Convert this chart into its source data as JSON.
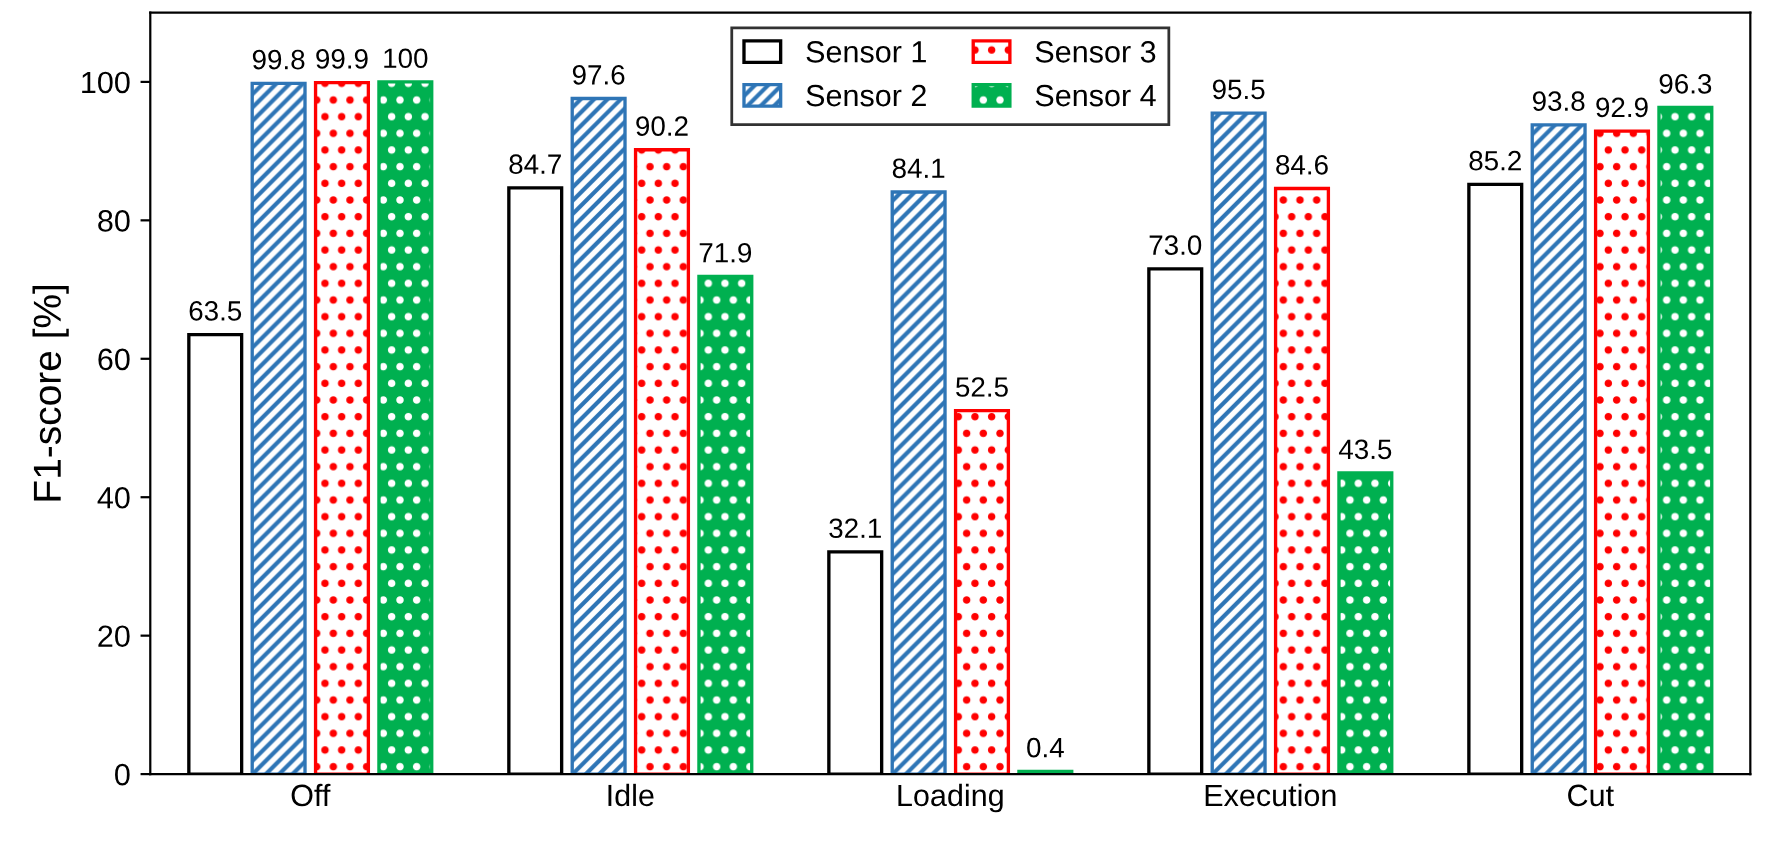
{
  "chart_data": {
    "type": "bar",
    "ylabel": "F1-score [%]",
    "categories": [
      "Off",
      "Idle",
      "Loading",
      "Execution",
      "Cut"
    ],
    "series": [
      {
        "name": "Sensor 1",
        "color": "#000000",
        "values": [
          63.5,
          84.7,
          32.1,
          73.0,
          85.2
        ],
        "value_labels": [
          "63.5",
          "84.7",
          "32.1",
          "73.0",
          "85.2"
        ]
      },
      {
        "name": "Sensor 2",
        "color": "#2e75b6",
        "values": [
          99.8,
          97.6,
          84.1,
          95.5,
          93.8
        ],
        "value_labels": [
          "99.8",
          "97.6",
          "84.1",
          "95.5",
          "93.8"
        ]
      },
      {
        "name": "Sensor 3",
        "color": "#ff0000",
        "values": [
          99.9,
          90.2,
          52.5,
          84.6,
          92.9
        ],
        "value_labels": [
          "99.9",
          "90.2",
          "52.5",
          "84.6",
          "92.9"
        ]
      },
      {
        "name": "Sensor 4",
        "color": "#00b050",
        "values": [
          100,
          71.9,
          0.4,
          43.5,
          96.3
        ],
        "value_labels": [
          "100",
          "71.9",
          "0.4",
          "43.5",
          "96.3"
        ]
      }
    ],
    "ylim": [
      0,
      110
    ],
    "yticks": [
      0,
      20,
      40,
      60,
      80,
      100
    ],
    "grid": false,
    "legend": "top"
  }
}
